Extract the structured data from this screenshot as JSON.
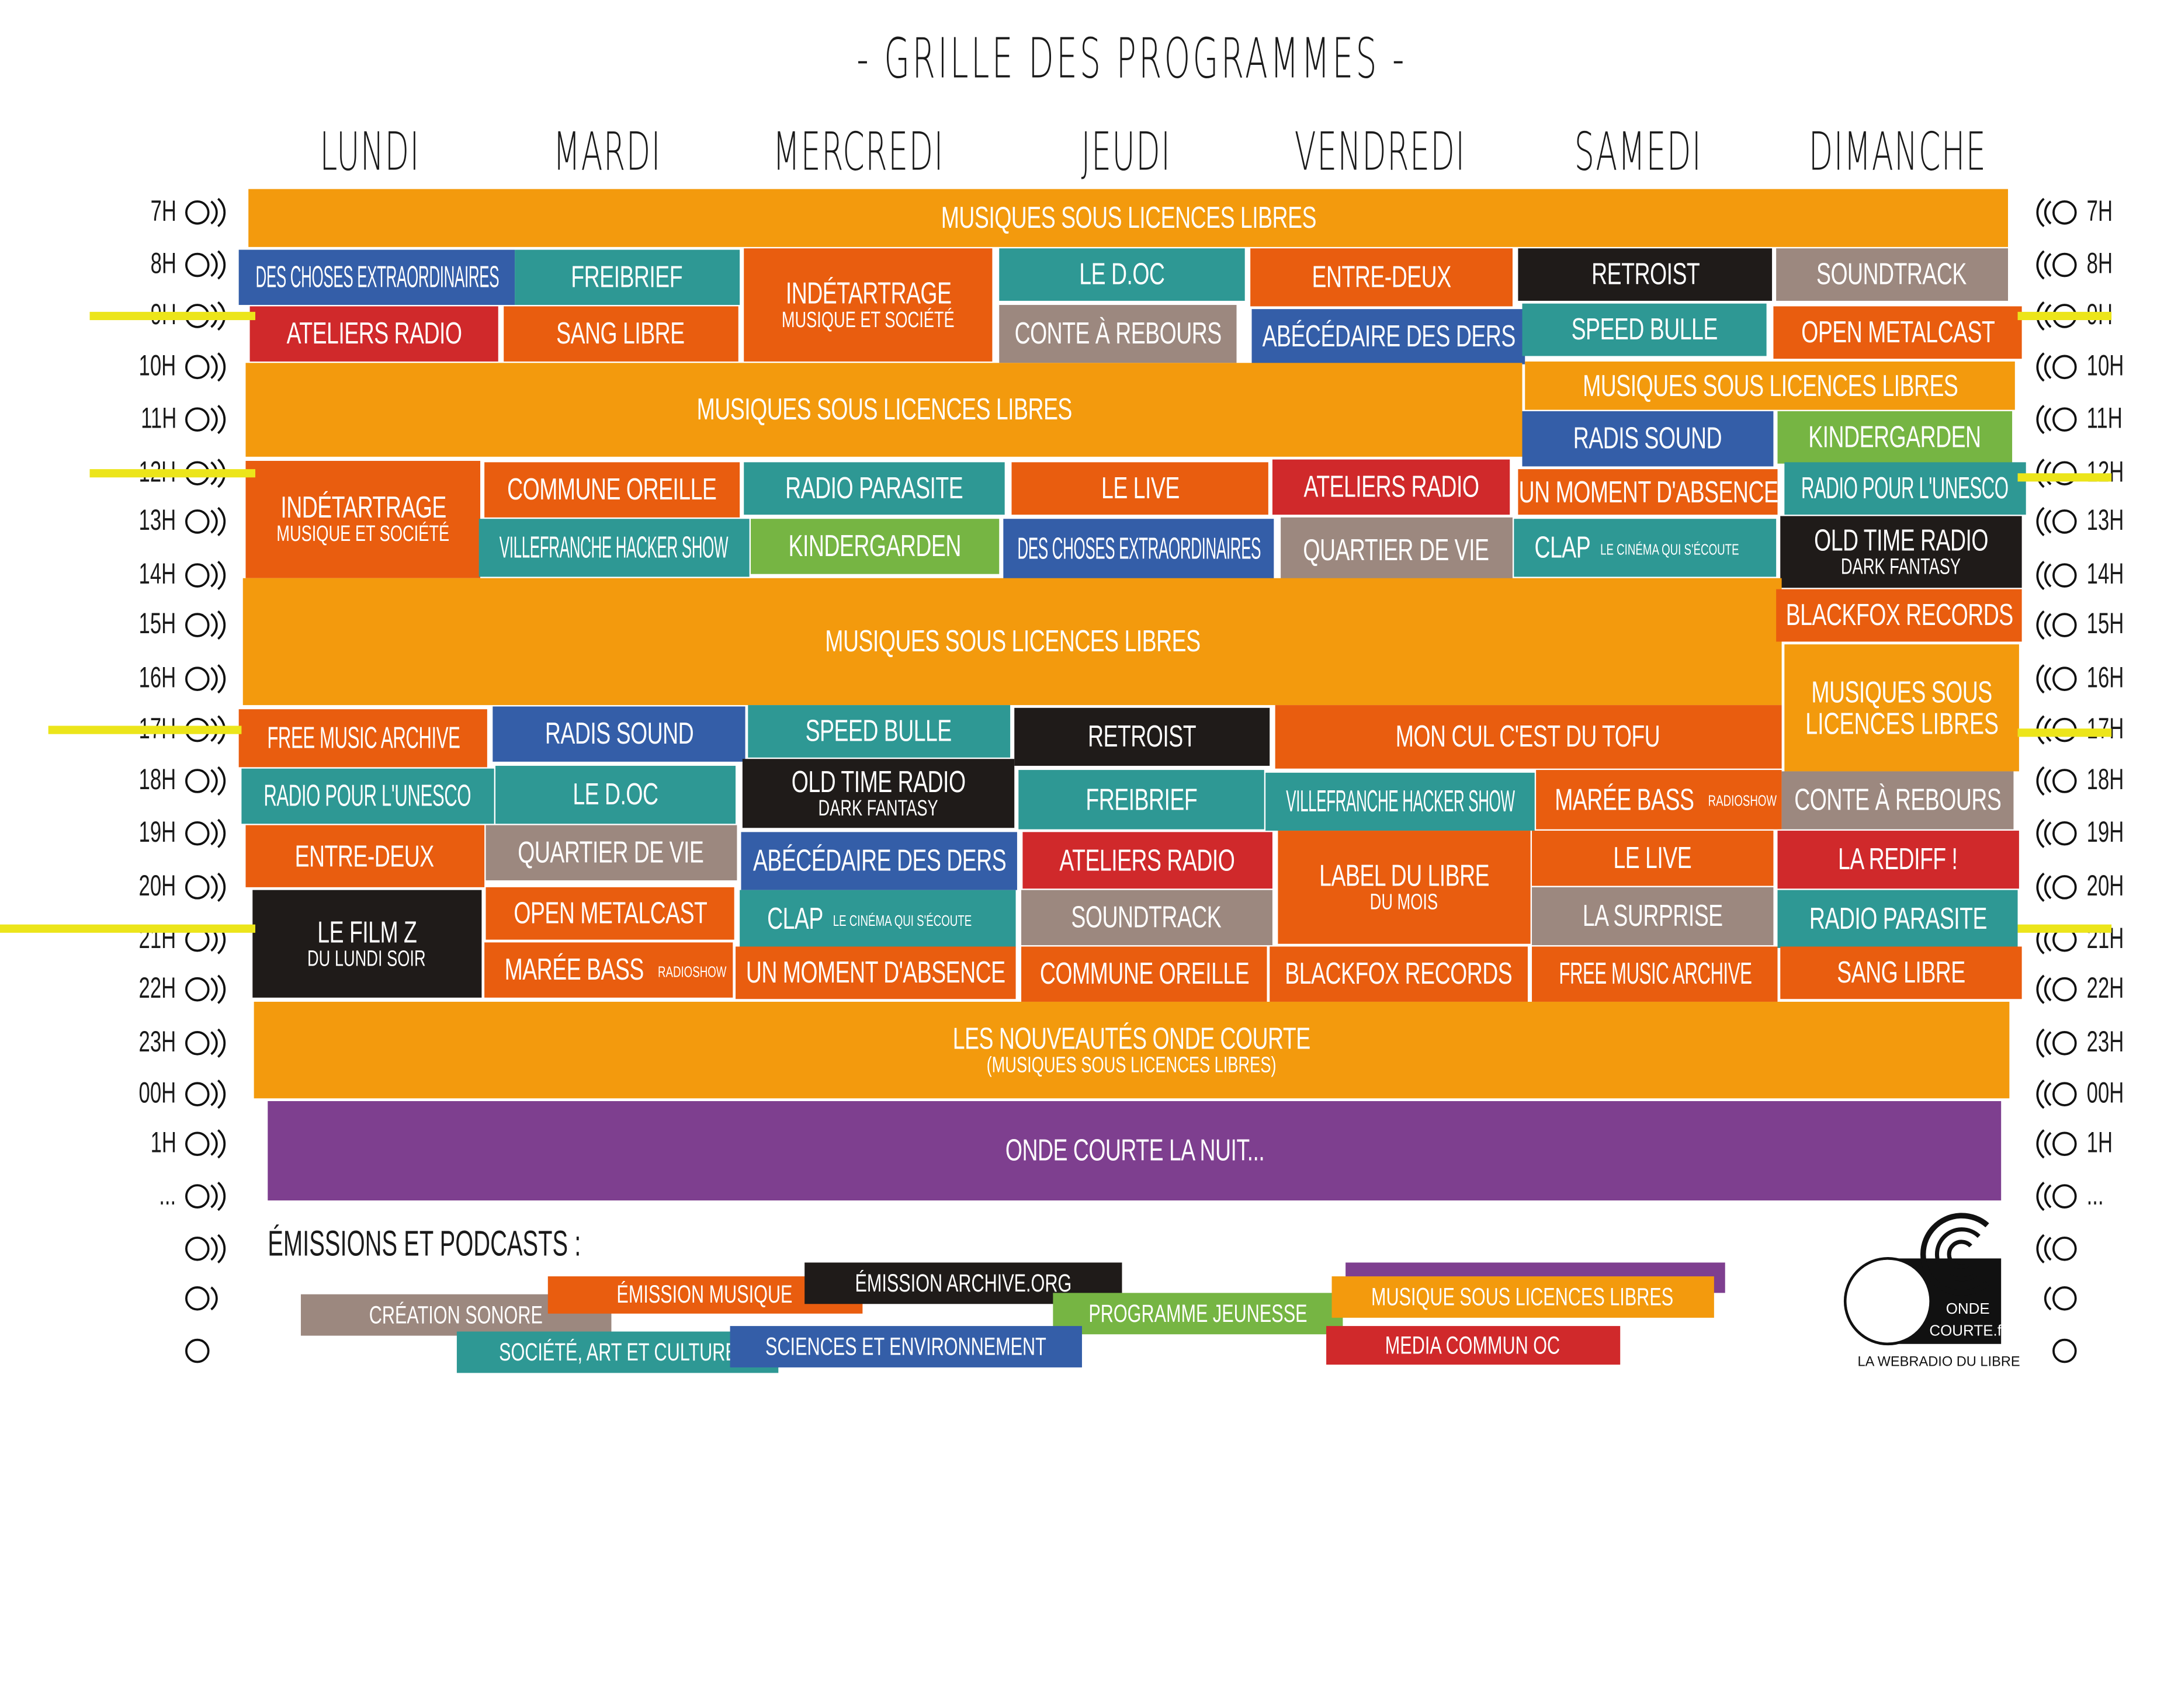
{
  "title": "- GRILLE DES PROGRAMMES -",
  "days": [
    "LUNDI",
    "MARDI",
    "MERCREDI",
    "JEUDI",
    "VENDREDI",
    "SAMEDI",
    "DIMANCHE"
  ],
  "hours": [
    "7H",
    "8H",
    "9H",
    "10H",
    "11H",
    "12H",
    "13H",
    "14H",
    "15H",
    "16H",
    "17H",
    "18H",
    "19H",
    "20H",
    "21H",
    "22H",
    "23H",
    "00H",
    "1H",
    "..."
  ],
  "colors": {
    "orange": "#F39A0D",
    "dorange": "#E95D0F",
    "teal": "#2E9894",
    "blue": "#345EA8",
    "red": "#D0292B",
    "black": "#1F1B19",
    "gray": "#9C887F",
    "green": "#76B543",
    "purple": "#7E3F8F",
    "highlight": "#ECE51A"
  },
  "blocks": [
    {
      "title": "MUSIQUES SOUS LICENCES LIBRES",
      "color": "orange"
    },
    {
      "title": "DES CHOSES EXTRAORDINAIRES",
      "color": "blue"
    },
    {
      "title": "FREIBRIEF",
      "color": "teal"
    },
    {
      "title": "INDÉTARTRAGE",
      "sub": "MUSIQUE ET SOCIÉTÉ",
      "color": "dorange"
    },
    {
      "title": "LE D.OC",
      "color": "teal"
    },
    {
      "title": "ENTRE-DEUX",
      "color": "dorange"
    },
    {
      "title": "RETROIST",
      "color": "black"
    },
    {
      "title": "SOUNDTRACK",
      "color": "gray"
    },
    {
      "title": "ATELIERS RADIO",
      "color": "red"
    },
    {
      "title": "SANG LIBRE",
      "color": "dorange"
    },
    {
      "title": "CONTE À REBOURS",
      "color": "gray"
    },
    {
      "title": "ABÉCÉDAIRE DES DERS",
      "color": "blue"
    },
    {
      "title": "SPEED BULLE",
      "color": "teal"
    },
    {
      "title": "OPEN METALCAST",
      "color": "dorange"
    },
    {
      "title": "MUSIQUES SOUS LICENCES LIBRES",
      "color": "orange"
    },
    {
      "title": "MUSIQUES SOUS  LICENCES LIBRES",
      "color": "orange"
    },
    {
      "title": "RADIS SOUND",
      "color": "blue"
    },
    {
      "title": "KINDERGARDEN",
      "color": "green"
    },
    {
      "title": "INDÉTARTRAGE",
      "sub": "MUSIQUE ET SOCIÉTÉ",
      "color": "dorange"
    },
    {
      "title": "COMMUNE OREILLE",
      "color": "dorange"
    },
    {
      "title": "RADIO PARASITE",
      "color": "teal"
    },
    {
      "title": "LE LIVE",
      "color": "dorange"
    },
    {
      "title": "ATELIERS RADIO",
      "color": "red"
    },
    {
      "title": "UN MOMENT D'ABSENCE",
      "color": "dorange"
    },
    {
      "title": "RADIO POUR L'UNESCO",
      "color": "teal"
    },
    {
      "title": "VILLEFRANCHE HACKER SHOW",
      "color": "teal"
    },
    {
      "title": "KINDERGARDEN",
      "color": "green"
    },
    {
      "title": "DES CHOSES EXTRAORDINAIRES",
      "color": "blue"
    },
    {
      "title": "QUARTIER DE VIE",
      "color": "gray"
    },
    {
      "title": "CLAP",
      "sub": "LE CINÉMA QUI S'ÉCOUTE",
      "color": "teal"
    },
    {
      "title": "OLD TIME RADIO",
      "sub": "DARK FANTASY",
      "color": "black"
    },
    {
      "title": "MUSIQUES SOUS LICENCES LIBRES",
      "color": "orange"
    },
    {
      "title": "BLACKFOX RECORDS",
      "color": "dorange"
    },
    {
      "title": "MUSIQUES SOUS",
      "sub": "LICENCES LIBRES",
      "color": "orange"
    },
    {
      "title": "FREE MUSIC ARCHIVE",
      "color": "dorange"
    },
    {
      "title": "RADIS SOUND",
      "color": "blue"
    },
    {
      "title": "SPEED BULLE",
      "color": "teal"
    },
    {
      "title": "RETROIST",
      "color": "black"
    },
    {
      "title": "MON CUL C'EST DU TOFU",
      "color": "dorange"
    },
    {
      "title": "RADIO POUR L'UNESCO",
      "color": "teal"
    },
    {
      "title": "LE D.OC",
      "color": "teal"
    },
    {
      "title": "OLD TIME RADIO",
      "sub": "DARK FANTASY",
      "color": "black"
    },
    {
      "title": "FREIBRIEF",
      "color": "teal"
    },
    {
      "title": "VILLEFRANCHE HACKER SHOW",
      "color": "teal"
    },
    {
      "title": "MARÉE BASS",
      "sub": "RADIOSHOW",
      "color": "dorange"
    },
    {
      "title": "CONTE À REBOURS",
      "color": "gray"
    },
    {
      "title": "ENTRE-DEUX",
      "color": "dorange"
    },
    {
      "title": "QUARTIER DE VIE",
      "color": "gray"
    },
    {
      "title": "ABÉCÉDAIRE DES DERS",
      "color": "blue"
    },
    {
      "title": "ATELIERS RADIO",
      "color": "red"
    },
    {
      "title": "LABEL DU LIBRE",
      "sub": "DU MOIS",
      "color": "dorange"
    },
    {
      "title": "LE LIVE",
      "color": "dorange"
    },
    {
      "title": "LA REDIFF !",
      "color": "red"
    },
    {
      "title": "LE FILM Z",
      "sub": "DU LUNDI SOIR",
      "color": "black"
    },
    {
      "title": "OPEN METALCAST",
      "color": "dorange"
    },
    {
      "title": "CLAP",
      "sub": "LE CINÉMA QUI S'ÉCOUTE",
      "color": "teal"
    },
    {
      "title": "SOUNDTRACK",
      "color": "gray"
    },
    {
      "title": "LA SURPRISE",
      "color": "gray"
    },
    {
      "title": "RADIO PARASITE",
      "color": "teal"
    },
    {
      "title": "MARÉE BASS",
      "sub": "RADIOSHOW",
      "color": "dorange"
    },
    {
      "title": "UN MOMENT D'ABSENCE",
      "color": "dorange"
    },
    {
      "title": "COMMUNE OREILLE",
      "color": "dorange"
    },
    {
      "title": "BLACKFOX RECORDS",
      "color": "dorange"
    },
    {
      "title": "FREE MUSIC ARCHIVE",
      "color": "dorange"
    },
    {
      "title": "SANG LIBRE",
      "color": "dorange"
    },
    {
      "title": "LES NOUVEAUTÉS ONDE COURTE",
      "sub": "(MUSIQUES SOUS LICENCES LIBRES)",
      "color": "orange"
    },
    {
      "title": "ONDE COURTE LA NUIT...",
      "color": "purple"
    }
  ],
  "legend": {
    "heading": "ÉMISSIONS ET PODCASTS :",
    "tags": [
      {
        "label": "CRÉATION SONORE",
        "color": "gray"
      },
      {
        "label": "ÉMISSION MUSIQUE",
        "color": "dorange"
      },
      {
        "label": "ÉMISSION  ARCHIVE.ORG",
        "color": "black"
      },
      {
        "label": "PROGRAMME JEUNESSE",
        "color": "green"
      },
      {
        "label": "MUSIQUE SOUS LICENCES LIBRES",
        "color": "orange"
      },
      {
        "label": "SOCIÉTÉ, ART ET CULTURE",
        "color": "teal"
      },
      {
        "label": "SCIENCES ET ENVIRONNEMENT",
        "color": "blue"
      },
      {
        "label": "MEDIA COMMUN OC",
        "color": "red"
      }
    ]
  },
  "logo": {
    "line1": "ONDE",
    "line2": "COURTE.fr",
    "tagline": "LA WEBRADIO DU LIBRE"
  },
  "icons": {
    "left": "radio-waves-right-icon",
    "right": "radio-waves-left-icon"
  }
}
